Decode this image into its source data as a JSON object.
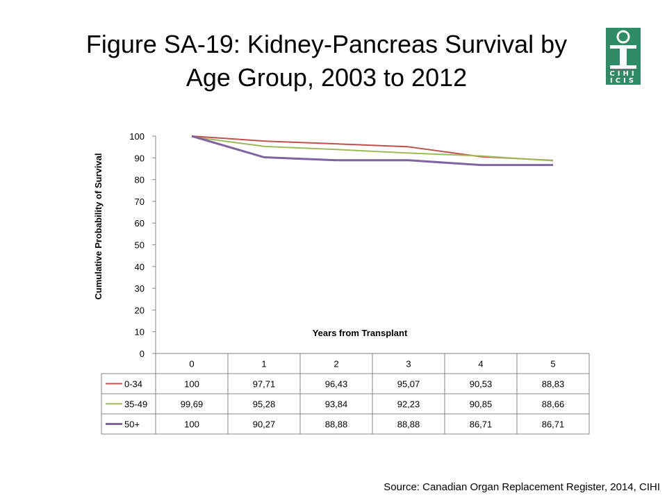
{
  "title_lines": [
    "Figure SA-19: Kidney-Pancreas Survival by",
    "Age Group, 2003 to 2012"
  ],
  "logo": {
    "top_text": "CIHI",
    "bottom_text": "ICIS",
    "color": "#2f8a66"
  },
  "source": "Source: Canadian Organ Replacement Register, 2014, CIHI",
  "chart_data": {
    "type": "line",
    "xlabel": "Years from Transplant",
    "ylabel": "Cumulative Probability of Survival",
    "categories": [
      "0",
      "1",
      "2",
      "3",
      "4",
      "5"
    ],
    "ylim": [
      0,
      100
    ],
    "yticks": [
      0,
      10,
      20,
      30,
      40,
      50,
      60,
      70,
      80,
      90,
      100
    ],
    "grid": false,
    "legend": "data-table",
    "series": [
      {
        "name": "0-34",
        "color": "#c0504d",
        "values": [
          100,
          97.71,
          96.43,
          95.07,
          90.53,
          88.83
        ],
        "labels": [
          "100",
          "97,71",
          "96,43",
          "95,07",
          "90,53",
          "88,83"
        ]
      },
      {
        "name": "35-49",
        "color": "#9bbb59",
        "values": [
          99.69,
          95.28,
          93.84,
          92.23,
          90.85,
          88.66
        ],
        "labels": [
          "99,69",
          "95,28",
          "93,84",
          "92,23",
          "90,85",
          "88,66"
        ]
      },
      {
        "name": "50+",
        "color": "#8064a2",
        "values": [
          100,
          90.27,
          88.88,
          88.88,
          86.71,
          86.71
        ],
        "labels": [
          "100",
          "90,27",
          "88,88",
          "88,88",
          "86,71",
          "86,71"
        ]
      }
    ]
  }
}
